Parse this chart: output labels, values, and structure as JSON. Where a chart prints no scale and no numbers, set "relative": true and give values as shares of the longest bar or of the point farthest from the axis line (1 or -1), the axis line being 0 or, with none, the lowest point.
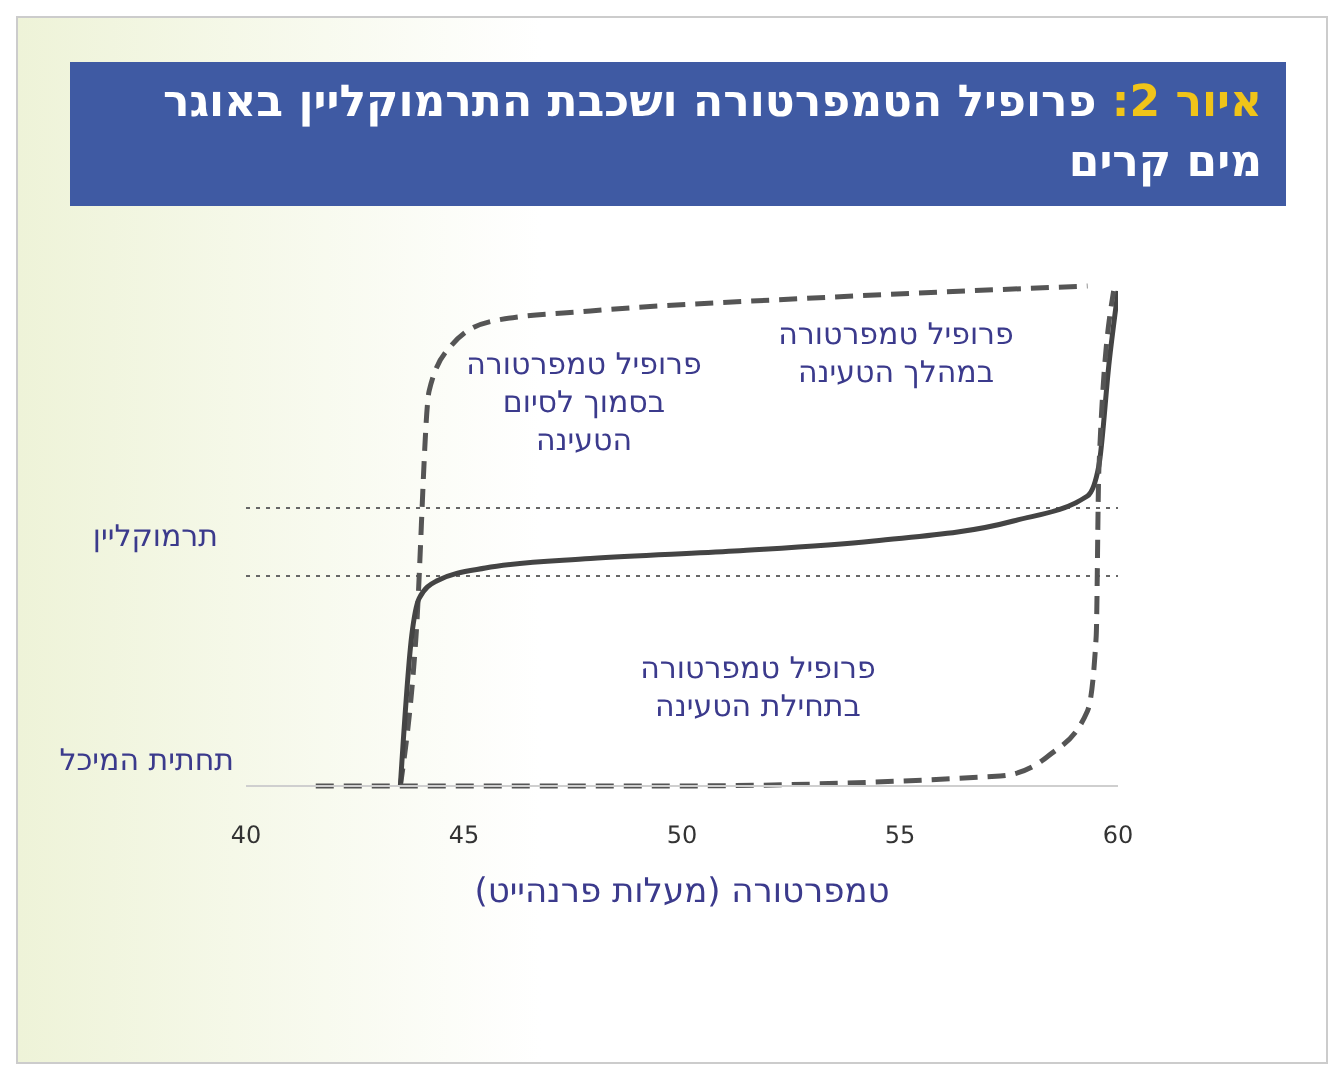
{
  "chart_data": {
    "type": "line",
    "title": "איור 2: פרופיל הטמפרטורה ושכבת התרמוקליין באוגר מים קרים",
    "xlabel": "טמפרטורה (מעלות פרנהייט)",
    "relative": true,
    "xlim": [
      40,
      60
    ],
    "xticks": [
      40,
      45,
      50,
      55,
      60
    ],
    "marker": "none",
    "series": [
      {
        "color": "#555555",
        "line_style": "dashed",
        "x": [
          43.54,
          43.9,
          44.2,
          44.7,
          45.66,
          47.9,
          52.8,
          59.3
        ],
        "values": [
          0,
          0.3,
          0.79,
          0.88,
          0.93,
          0.95,
          0.975,
          1
        ]
      },
      {
        "color": "#444444",
        "line_style": "solid",
        "x": [
          43.54,
          43.8,
          43.97,
          44.37,
          45.49,
          47.9,
          51.2,
          54.4,
          57.6,
          59.3,
          59.56,
          59.8,
          60
        ],
        "values": [
          0,
          0.3,
          0.375,
          0.41,
          0.436,
          0.455,
          0.47,
          0.49,
          0.53,
          0.58,
          0.64,
          0.85,
          0.99
        ]
      },
      {
        "color": "#555555",
        "line_style": "dashed",
        "x": [
          41.6,
          49.6,
          57.3,
          58.4,
          59.3,
          59.5,
          59.56,
          59.9
        ],
        "values": [
          0,
          0,
          0.02,
          0.06,
          0.15,
          0.3,
          0.63,
          0.99
        ]
      }
    ],
    "ref_lines": [
      {
        "axis": "y",
        "value": 0.42,
        "color": "#666666",
        "line_style": "dotted"
      },
      {
        "axis": "y",
        "value": 0.556,
        "color": "#666666",
        "line_style": "dotted"
      }
    ],
    "annotations": [
      "פרופיל טמפרטורה בסמוך לסיום הטעינה",
      "פרופיל טמפרטורה במהלך הטעינה",
      "פרופיל טמפרטורה בתחילת הטעינה",
      "תחתית המיכל",
      "תרמוקליין"
    ]
  }
}
